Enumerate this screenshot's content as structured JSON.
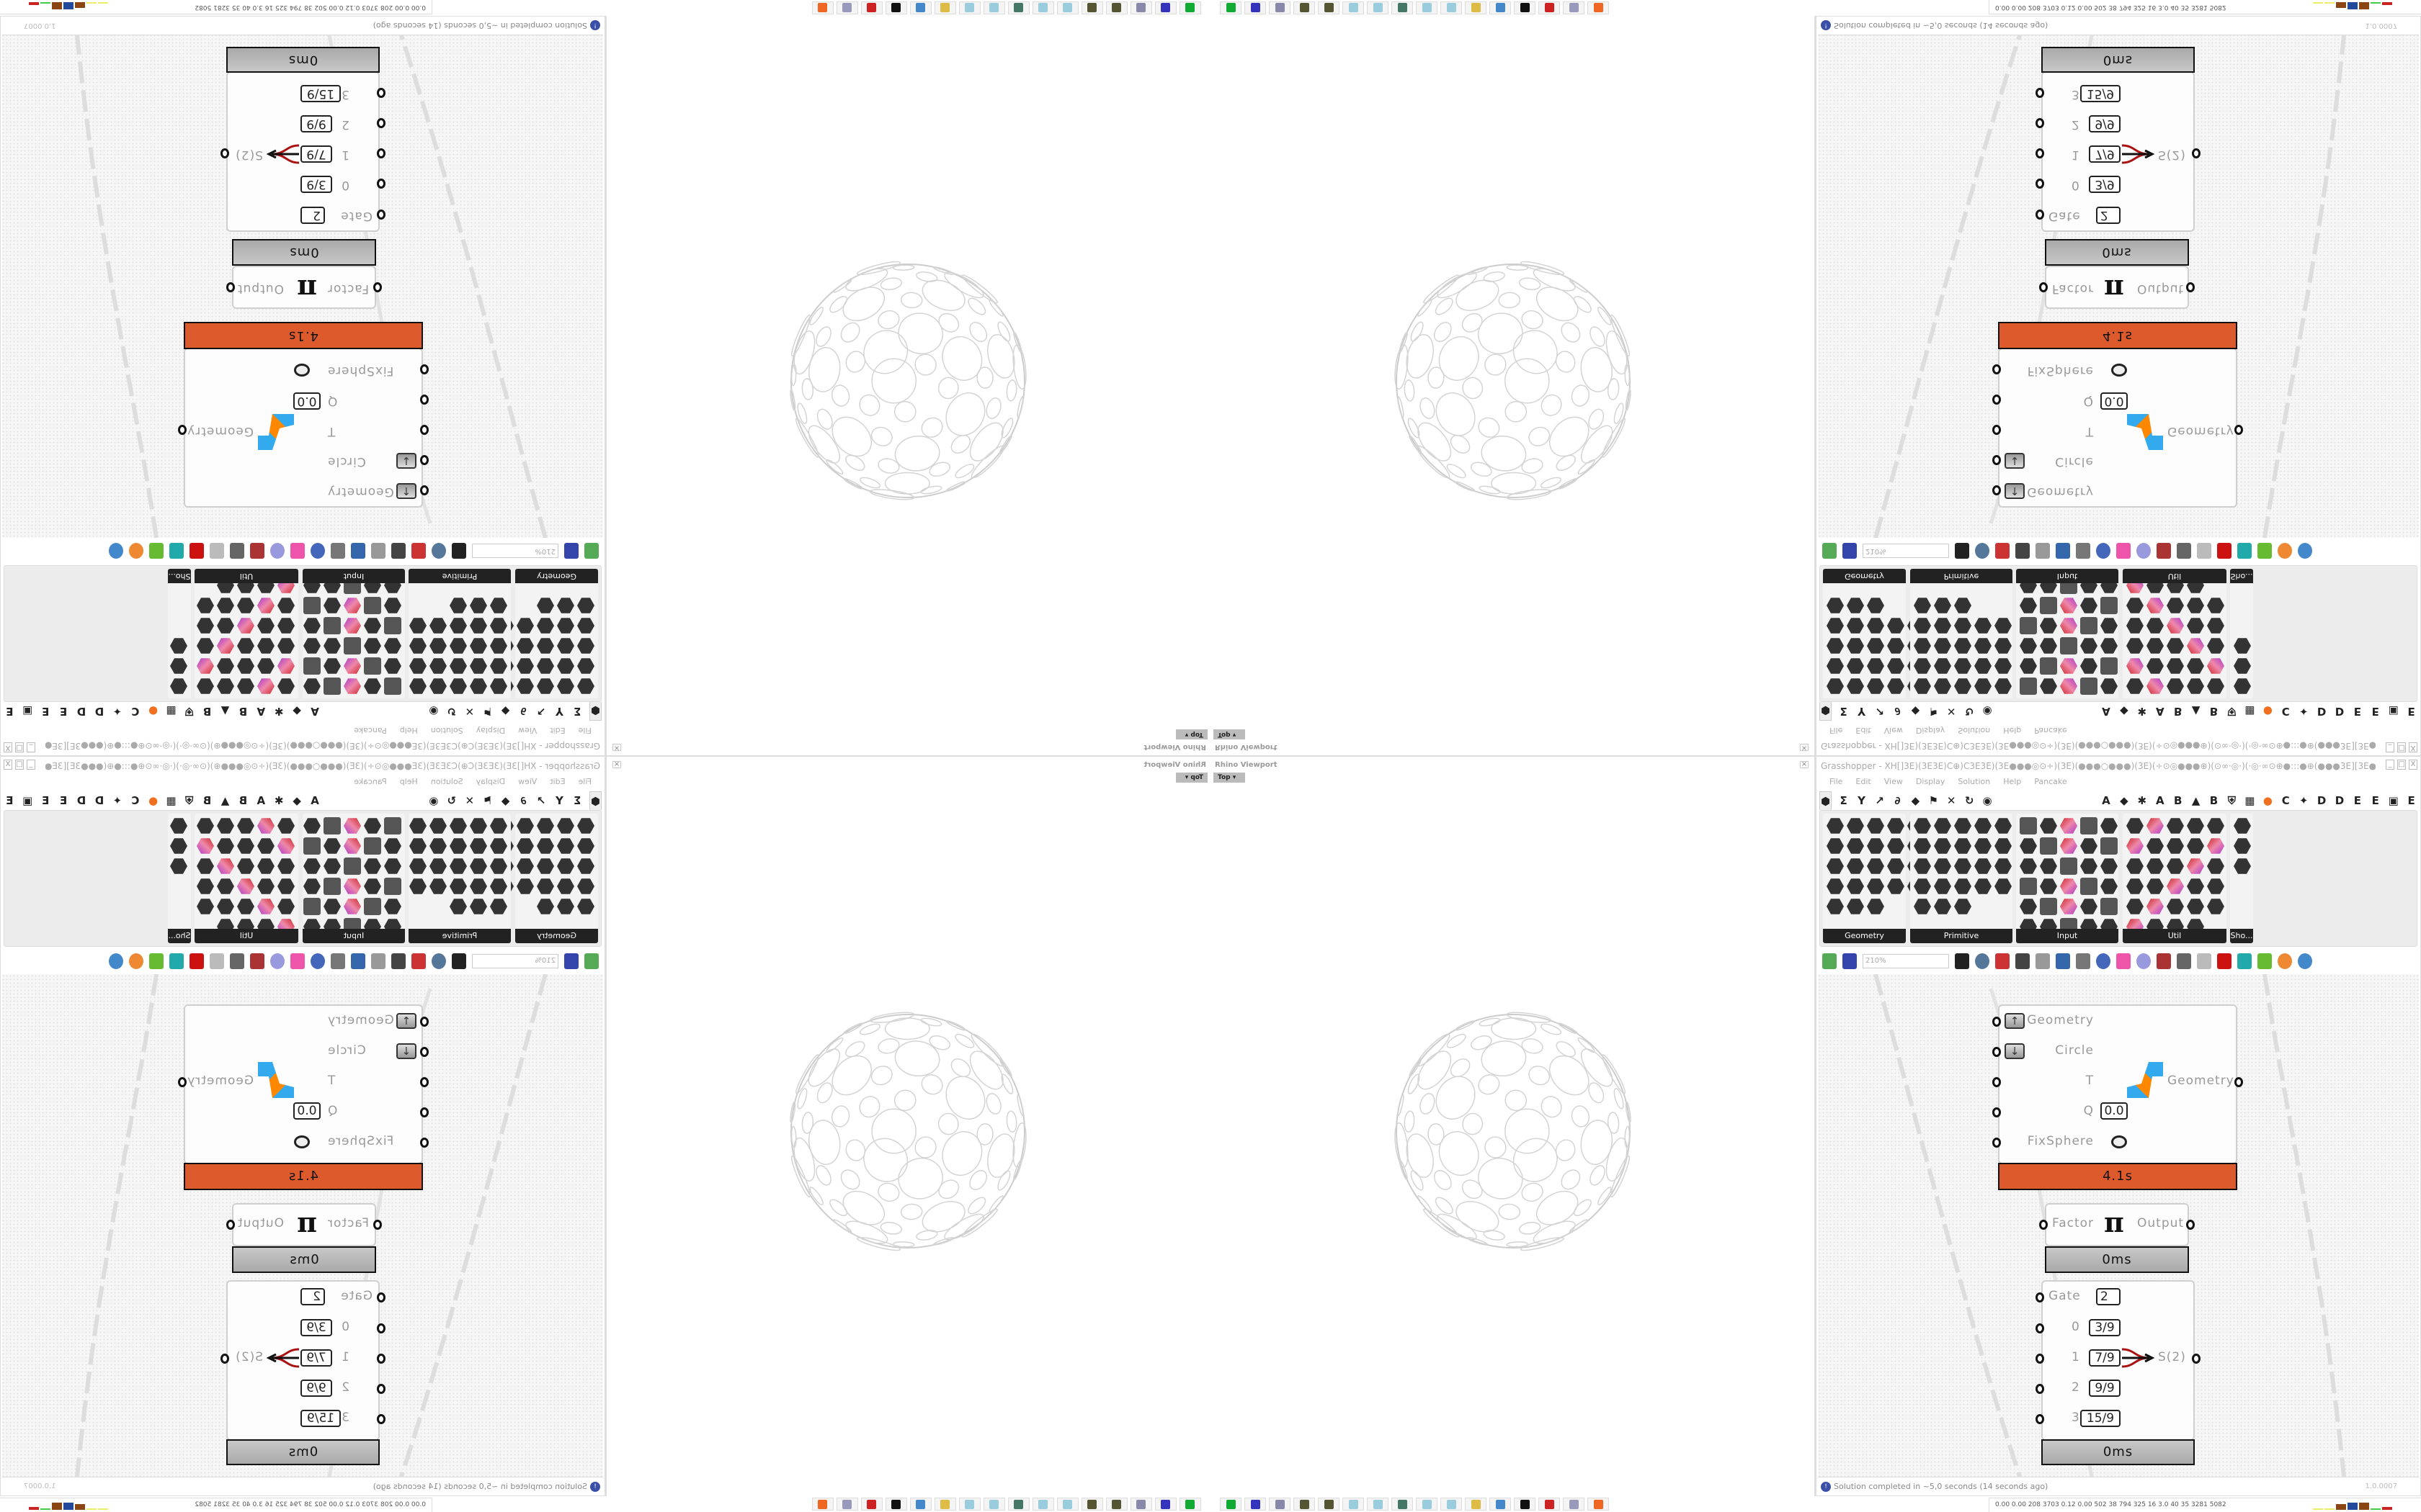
{
  "rhino": {
    "title": "Rhino Viewport",
    "view_label": "Top",
    "close_label": "×"
  },
  "grasshopper": {
    "title": "Grasshopper - XH[]3E)(3E3E)C⊕)C3E3E)(3E●●●◎⊙÷)(3E)(●●●○●●●)(3E)(÷⊙◎●●●⊕)(⊙∞·◎·)(·◎·∞⊙⊕●:::●⊕(●●●3E][3E●●●⊕●:::●⊕)(⊙∞·◎·)(·◎·∞⊙⊕●●●◎⊙÷)(3E)(●●●○●●●...",
    "menu": [
      "File",
      "Edit",
      "View",
      "Display",
      "Solution",
      "Help",
      "Pancake"
    ],
    "tabs": [
      "⬢",
      "Σ",
      "Y",
      "↗",
      "∂",
      "◆",
      "⚑",
      "✕",
      "↻",
      "◉",
      "A",
      "◆",
      "✱",
      "A",
      "B",
      "▲",
      "B",
      "⛨",
      "▦",
      "●",
      "C",
      "✦",
      "D",
      "D",
      "E",
      "E",
      "▣",
      "E"
    ],
    "panels": [
      {
        "label": "Geometry",
        "icon_count": 23
      },
      {
        "label": "Primitive",
        "icon_count": 23
      },
      {
        "label": "Input",
        "icon_count": 30
      },
      {
        "label": "Util",
        "icon_count": 29
      },
      {
        "label": "Sho...",
        "icon_count": 3
      }
    ],
    "zoom_level": "210%",
    "status_text": "Solution completed in ~5,0 seconds (14 seconds ago)",
    "version": "1.0.0007"
  },
  "components": {
    "kangaroo": {
      "inputs": [
        "Geometry",
        "Circle",
        "T",
        "Q",
        "FixSphere"
      ],
      "q_value": "0.0",
      "output": "Geometry",
      "time": "4.1s"
    },
    "pi": {
      "input": "Factor",
      "symbol": "π",
      "output": "Output",
      "time": "0ms"
    },
    "stream": {
      "gate_label": "Gate",
      "gate_value": "2",
      "inputs": [
        {
          "label": "0",
          "value": "3/9"
        },
        {
          "label": "1",
          "value": "7/9"
        },
        {
          "label": "2",
          "value": "9/9"
        },
        {
          "label": "3",
          "value": "15/9"
        }
      ],
      "output": "S(2)",
      "time": "0ms"
    }
  },
  "taskbar": {
    "icons": [
      "terminal",
      "save-64",
      "printer",
      "gear-dark",
      "gear-dark",
      "notepad",
      "notepad",
      "monitor",
      "notepad",
      "notepad",
      "folder",
      "remote-desktop",
      "rhino",
      "red-app",
      "calculator",
      "firefox"
    ],
    "tray_text": "0.00 0.00 208 3703 0.12 0.00 502 38 794 325 16 3.0 40 35 3281 5082"
  },
  "colors": {
    "accent_orange": "#dd5a2c",
    "status_blue": "#3a4fa8"
  }
}
